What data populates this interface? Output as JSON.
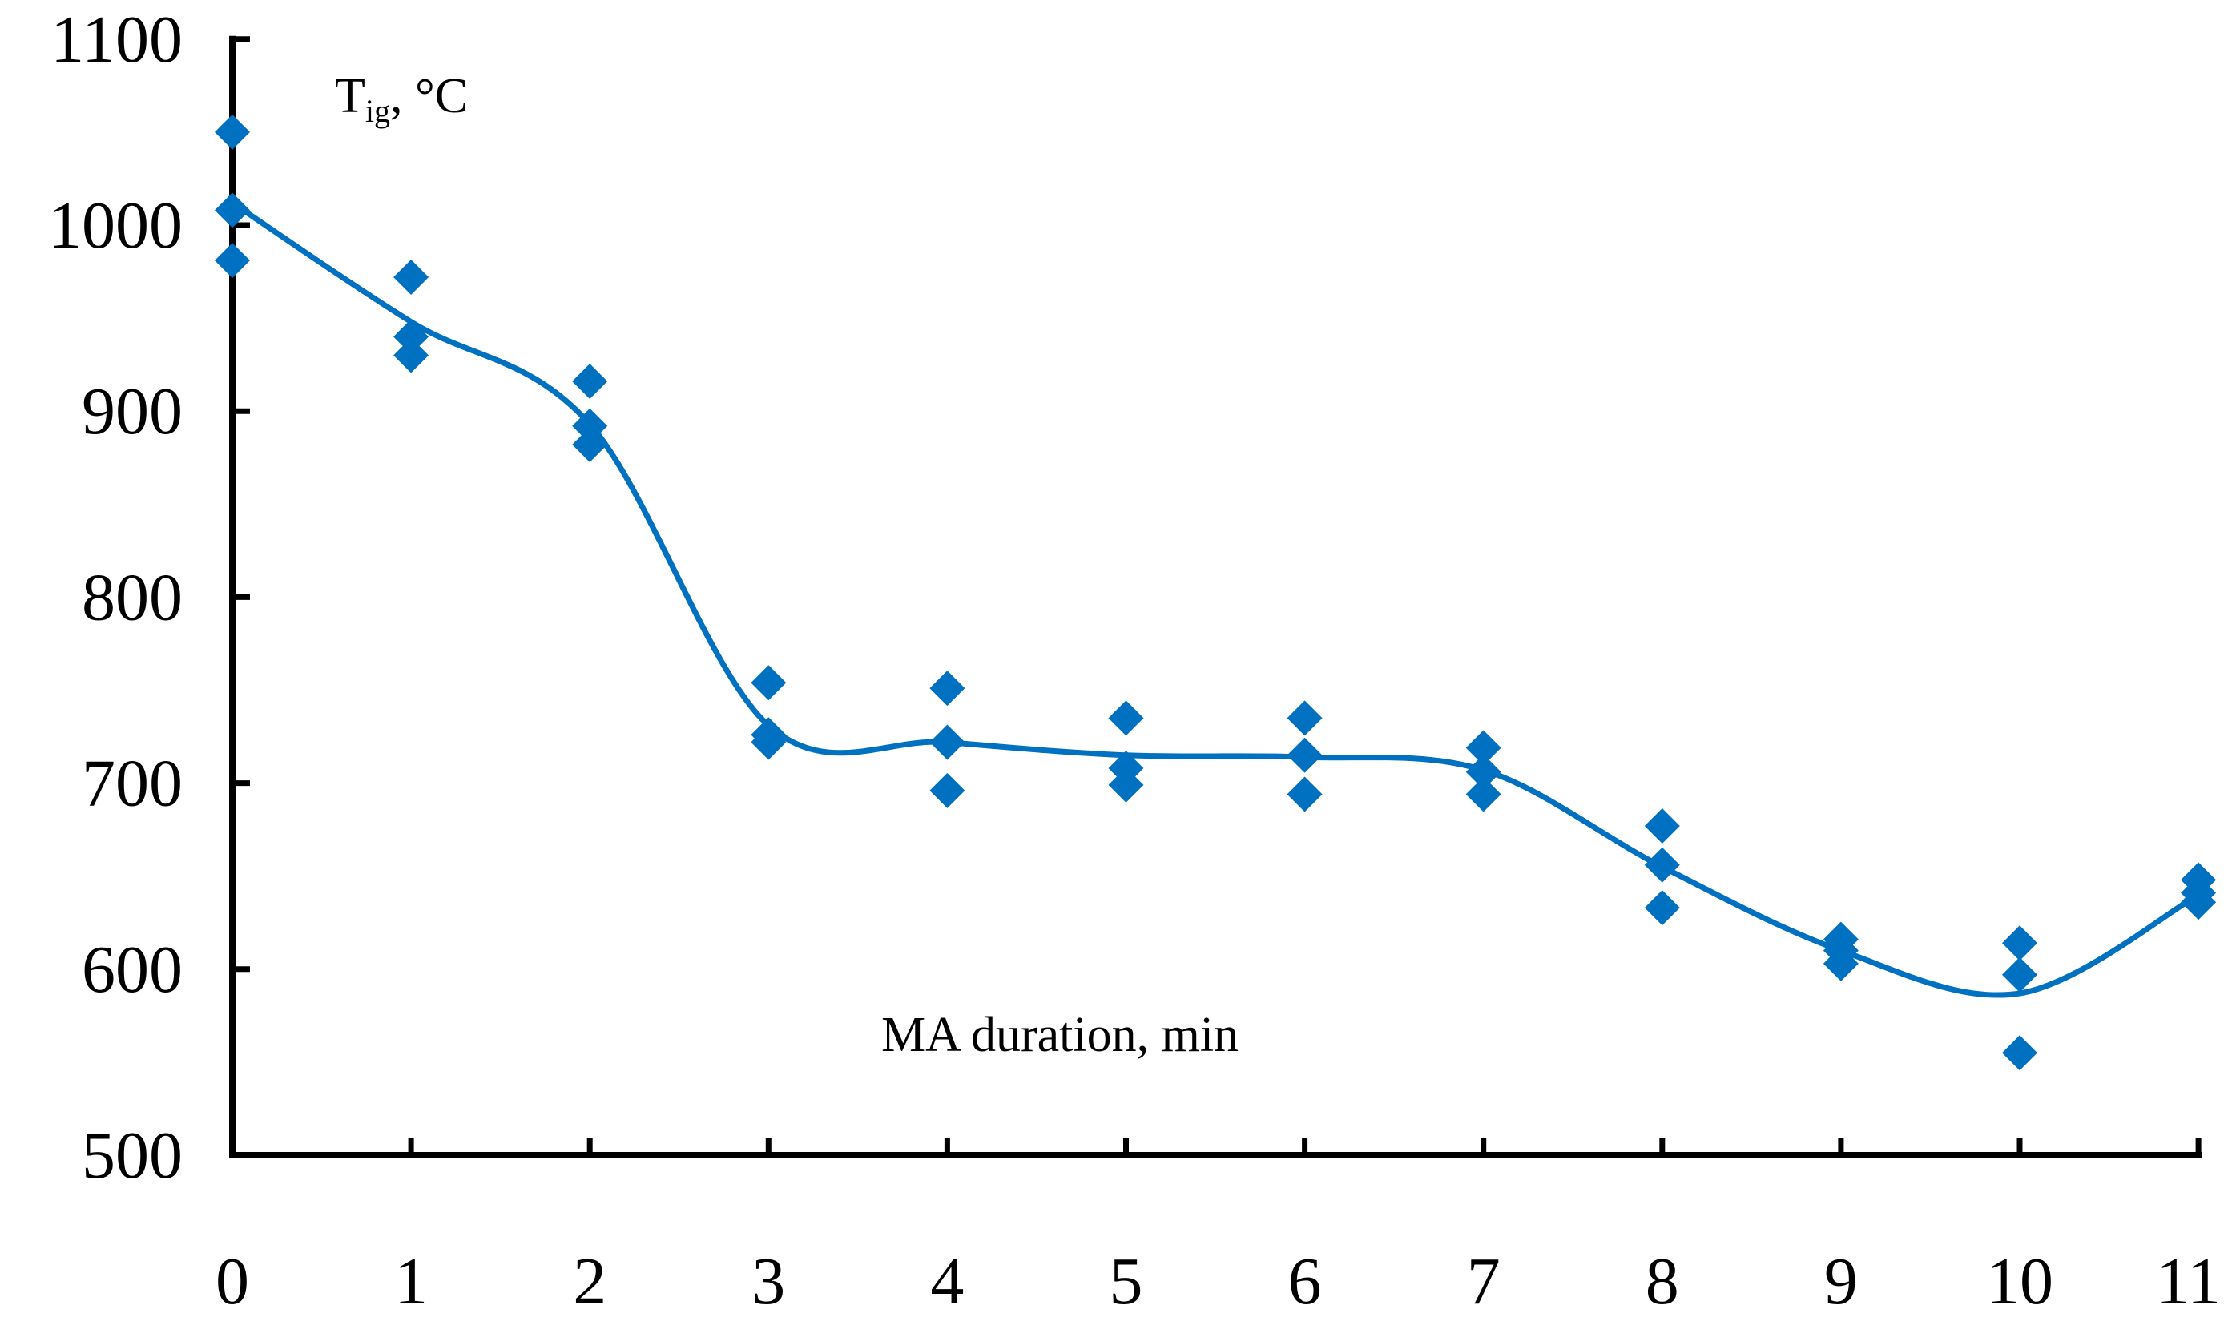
{
  "chart_data": {
    "type": "scatter",
    "xlabel": "MA duration, min",
    "ylabel": {
      "main": "T",
      "subscript": "ig",
      "unit": ", °C"
    },
    "xlim": [
      0,
      11
    ],
    "ylim": [
      500,
      1100
    ],
    "x_ticks": [
      "0",
      "1",
      "2",
      "3",
      "4",
      "5",
      "6",
      "7",
      "8",
      "9",
      "10",
      "11"
    ],
    "y_ticks": [
      "500",
      "600",
      "700",
      "800",
      "900",
      "1000",
      "1100"
    ],
    "grid": false,
    "colors": {
      "marker": "#0070C0",
      "line": "#0070C0",
      "axis": "#000000"
    },
    "series": [
      {
        "marker": "diamond",
        "points": [
          [
            0,
            1050
          ],
          [
            0,
            1008
          ],
          [
            0,
            981
          ],
          [
            1,
            972
          ],
          [
            1,
            940
          ],
          [
            1,
            930
          ],
          [
            2,
            916
          ],
          [
            2,
            892
          ],
          [
            2,
            882
          ],
          [
            3,
            754
          ],
          [
            3,
            726
          ],
          [
            3,
            722
          ],
          [
            4,
            751
          ],
          [
            4,
            722
          ],
          [
            4,
            696
          ],
          [
            5,
            735
          ],
          [
            5,
            708
          ],
          [
            5,
            699
          ],
          [
            6,
            735
          ],
          [
            6,
            715
          ],
          [
            6,
            694
          ],
          [
            7,
            719
          ],
          [
            7,
            706
          ],
          [
            7,
            694
          ],
          [
            8,
            677
          ],
          [
            8,
            656
          ],
          [
            8,
            633
          ],
          [
            9,
            616
          ],
          [
            9,
            610
          ],
          [
            9,
            603
          ],
          [
            10,
            614
          ],
          [
            10,
            597
          ],
          [
            10,
            555
          ],
          [
            11,
            648
          ],
          [
            11,
            641
          ],
          [
            11,
            636
          ]
        ]
      },
      {
        "type": "smooth-line",
        "points": [
          [
            0,
            1012
          ],
          [
            1,
            948
          ],
          [
            2,
            893
          ],
          [
            3,
            731
          ],
          [
            4,
            722
          ],
          [
            5,
            715
          ],
          [
            6,
            714
          ],
          [
            7,
            707
          ],
          [
            8,
            655
          ],
          [
            9,
            610
          ],
          [
            10,
            587
          ],
          [
            11,
            640
          ]
        ]
      }
    ]
  }
}
